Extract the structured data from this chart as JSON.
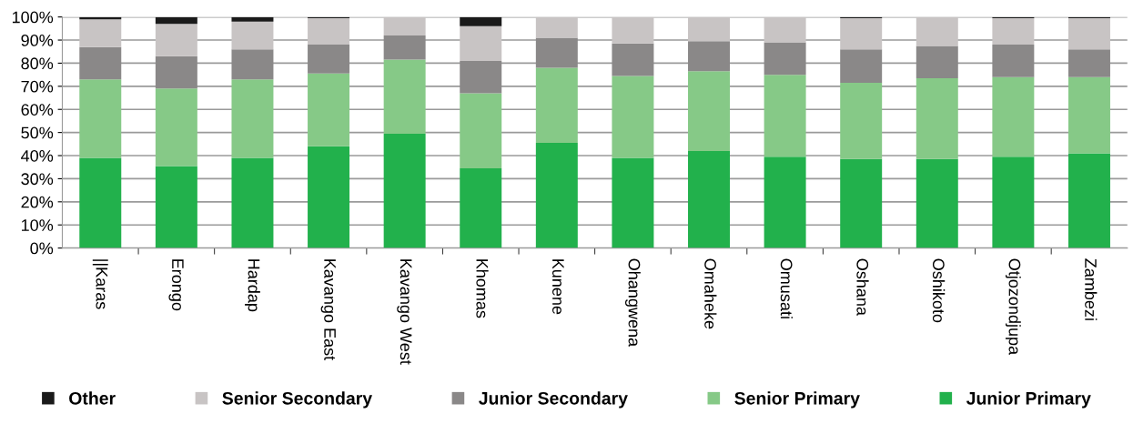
{
  "chart_data": {
    "type": "bar",
    "stacked": true,
    "categories": [
      "||Karas",
      "Erongo",
      "Hardap",
      "Kavango East",
      "Kavango West",
      "Khomas",
      "Kunene",
      "Ohangwena",
      "Omaheke",
      "Omusati",
      "Oshana",
      "Oshikoto",
      "Otjozondjupa",
      "Zambezi"
    ],
    "series": [
      {
        "name": "Junior Primary",
        "color": "#22b14c",
        "values": [
          39,
          35.5,
          39,
          44,
          49.5,
          34.5,
          45.5,
          39,
          42,
          39.5,
          38.5,
          38.5,
          39.5,
          41
        ]
      },
      {
        "name": "Senior Primary",
        "color": "#86c987",
        "values": [
          34,
          33.5,
          34,
          31.5,
          32,
          32.5,
          32.5,
          35.5,
          34.5,
          35.5,
          33,
          35,
          34.5,
          33
        ]
      },
      {
        "name": "Junior Secondary",
        "color": "#8a8888",
        "values": [
          14,
          14,
          13,
          12.5,
          10.5,
          14,
          13,
          14,
          13,
          14,
          14.5,
          14,
          14,
          12
        ]
      },
      {
        "name": "Senior Secondary",
        "color": "#c8c4c4",
        "values": [
          12,
          14,
          12,
          11.5,
          8,
          15,
          9,
          11.5,
          10.5,
          11,
          13.5,
          12.5,
          11.5,
          13.5
        ]
      },
      {
        "name": "Other",
        "color": "#1a1a1a",
        "values": [
          1,
          3,
          2,
          0.5,
          0,
          4,
          0,
          0,
          0,
          0,
          0.5,
          0,
          0.5,
          0.5
        ]
      }
    ],
    "ylim": [
      0,
      100
    ],
    "yticks": [
      {
        "value": 0,
        "label": "0%"
      },
      {
        "value": 10,
        "label": "10%"
      },
      {
        "value": 20,
        "label": "20%"
      },
      {
        "value": 30,
        "label": "30%"
      },
      {
        "value": 40,
        "label": "40%"
      },
      {
        "value": 50,
        "label": "50%"
      },
      {
        "value": 60,
        "label": "60%"
      },
      {
        "value": 70,
        "label": "70%"
      },
      {
        "value": 80,
        "label": "80%"
      },
      {
        "value": 90,
        "label": "90%"
      },
      {
        "value": 100,
        "label": "100%"
      }
    ],
    "grid": "y",
    "legend": "bottom"
  }
}
